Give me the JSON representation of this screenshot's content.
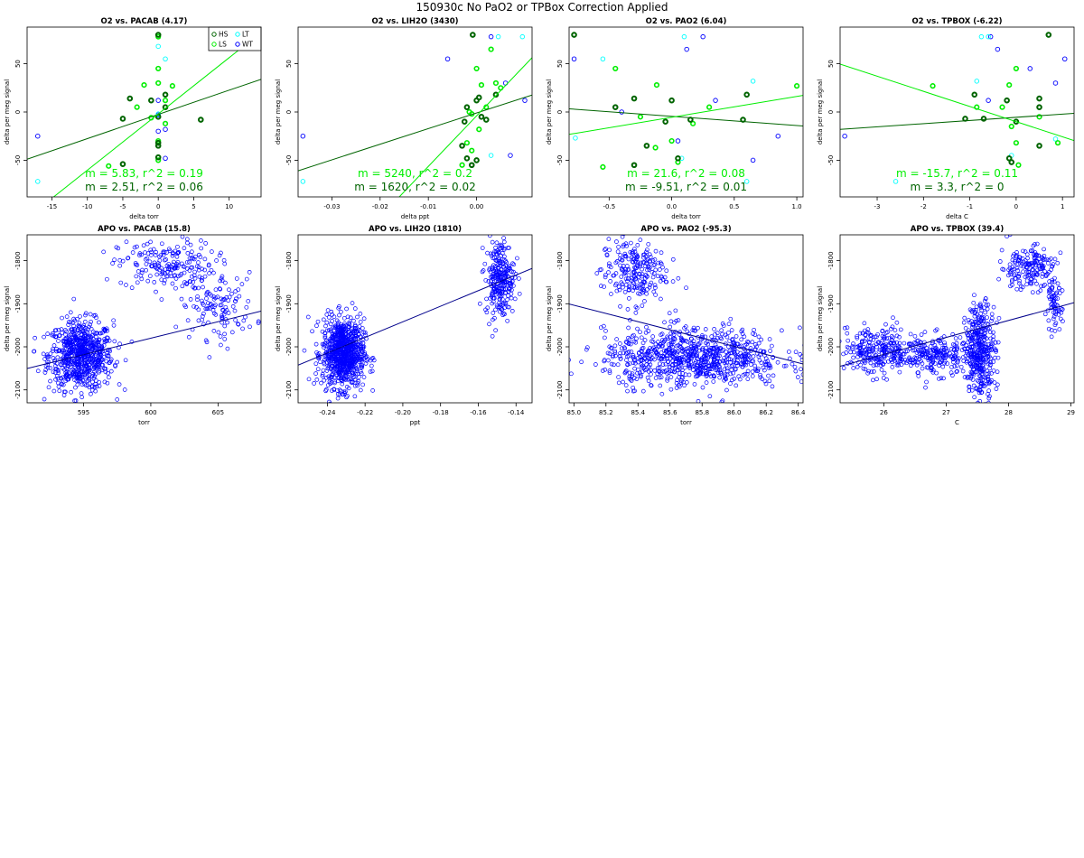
{
  "page_title": "150930c   No PaO2 or TPBox Correction Applied",
  "colors": {
    "HS": "#006400",
    "LS": "#00ee00",
    "LT": "#00ffff",
    "WT": "#0000ff",
    "fit_dark": "#006400",
    "fit_light": "#00ee00",
    "fit_apo": "#00008b"
  },
  "chart_data": [
    {
      "type": "scatter",
      "title": "O2 vs. PACAB (4.17)",
      "xlabel": "delta torr",
      "ylabel": "delta per meg signal",
      "xlim": [
        -18.5,
        14.5
      ],
      "ylim": [
        -88,
        88
      ],
      "xticks": [
        -15,
        -10,
        -5,
        0,
        5,
        10
      ],
      "yticks": [
        -50,
        0,
        50
      ],
      "legend": {
        "position": "top-right",
        "entries": [
          "HS",
          "LS",
          "LT",
          "WT"
        ]
      },
      "fit_dark": {
        "slope": 2.51,
        "intercept": -2.5,
        "label": "m = 2.51, r^2 = 0.06"
      },
      "fit_light": {
        "slope": 5.83,
        "intercept": -2,
        "label": "m = 5.83, r^2 = 0.19"
      },
      "series": [
        {
          "name": "HS",
          "points": [
            [
              0,
              80
            ],
            [
              0,
              -5
            ],
            [
              0,
              -35
            ],
            [
              0,
              -47
            ],
            [
              -1,
              12
            ],
            [
              1,
              5
            ],
            [
              -4,
              14
            ],
            [
              1,
              18
            ],
            [
              -5,
              -7
            ],
            [
              6,
              -8
            ],
            [
              -5,
              -54
            ],
            [
              0,
              -32
            ]
          ]
        },
        {
          "name": "LS",
          "points": [
            [
              0,
              78
            ],
            [
              0,
              45
            ],
            [
              0,
              30
            ],
            [
              1,
              12
            ],
            [
              -2,
              28
            ],
            [
              -3,
              5
            ],
            [
              2,
              27
            ],
            [
              1,
              -12
            ],
            [
              0,
              -30
            ],
            [
              -7,
              -56
            ],
            [
              0,
              -50
            ],
            [
              -1,
              -6
            ]
          ]
        },
        {
          "name": "LT",
          "points": [
            [
              1,
              55
            ],
            [
              0,
              68
            ],
            [
              0,
              -2
            ],
            [
              -17,
              -72
            ]
          ]
        },
        {
          "name": "WT",
          "points": [
            [
              0,
              12
            ],
            [
              0,
              -3
            ],
            [
              1,
              -48
            ],
            [
              1,
              -18
            ],
            [
              -17,
              -25
            ],
            [
              0,
              -20
            ]
          ]
        }
      ]
    },
    {
      "type": "scatter",
      "title": "O2 vs. LIH2O (3430)",
      "xlabel": "delta ppt",
      "ylabel": "delta per meg signal",
      "xlim": [
        -0.037,
        0.0115
      ],
      "ylim": [
        -88,
        88
      ],
      "xticks": [
        -0.03,
        -0.02,
        -0.01,
        0.0
      ],
      "xtick_labels": [
        "-0.03",
        "-0.02",
        "-0.01",
        "0.00"
      ],
      "yticks": [
        -50,
        0,
        50
      ],
      "fit_dark": {
        "slope": 1620,
        "intercept": -1,
        "label": "m = 1620, r^2 = 0.02"
      },
      "fit_light": {
        "slope": 5240,
        "intercept": -4,
        "label": "m = 5240, r^2 = 0.2"
      },
      "series": [
        {
          "name": "HS",
          "points": [
            [
              -0.0008,
              80
            ],
            [
              0.0,
              12
            ],
            [
              0.0005,
              15
            ],
            [
              0.001,
              -5
            ],
            [
              0.004,
              18
            ],
            [
              -0.002,
              5
            ],
            [
              -0.003,
              -35
            ],
            [
              -0.002,
              -48
            ],
            [
              0.0,
              -50
            ],
            [
              0.002,
              -8
            ],
            [
              -0.001,
              -55
            ],
            [
              -0.0025,
              -10
            ]
          ]
        },
        {
          "name": "LS",
          "points": [
            [
              0.0,
              45
            ],
            [
              0.003,
              65
            ],
            [
              0.005,
              25
            ],
            [
              0.001,
              28
            ],
            [
              -0.0015,
              0
            ],
            [
              -0.002,
              -32
            ],
            [
              -0.001,
              -40
            ],
            [
              0.0005,
              -18
            ],
            [
              0.002,
              5
            ],
            [
              -0.003,
              -55
            ],
            [
              0.004,
              30
            ],
            [
              -0.001,
              -2
            ]
          ]
        },
        {
          "name": "LT",
          "points": [
            [
              0.0045,
              78
            ],
            [
              0.0095,
              78
            ],
            [
              0.003,
              -45
            ],
            [
              -0.036,
              -72
            ]
          ]
        },
        {
          "name": "WT",
          "points": [
            [
              0.003,
              78
            ],
            [
              0.007,
              -45
            ],
            [
              0.01,
              12
            ],
            [
              -0.036,
              -25
            ],
            [
              -0.006,
              55
            ],
            [
              0.006,
              30
            ]
          ]
        }
      ]
    },
    {
      "type": "scatter",
      "title": "O2 vs. PAO2 (6.04)",
      "xlabel": "delta torr",
      "ylabel": "delta per meg signal",
      "xlim": [
        -0.82,
        1.05
      ],
      "ylim": [
        -88,
        88
      ],
      "xticks": [
        -0.5,
        0,
        0.5,
        1
      ],
      "xtick_labels": [
        "-0.5",
        "0.0",
        "0.5",
        "1.0"
      ],
      "yticks": [
        -50,
        0,
        50
      ],
      "fit_dark": {
        "slope": -9.51,
        "intercept": -4.5,
        "label": "m = -9.51, r^2 = 0.01"
      },
      "fit_light": {
        "slope": 21.6,
        "intercept": -5.5,
        "label": "m = 21.6, r^2 = 0.08"
      },
      "series": [
        {
          "name": "HS",
          "points": [
            [
              -0.78,
              80
            ],
            [
              -0.3,
              14
            ],
            [
              -0.45,
              5
            ],
            [
              0.0,
              12
            ],
            [
              0.6,
              18
            ],
            [
              -0.2,
              -35
            ],
            [
              0.05,
              -48
            ],
            [
              -0.3,
              -55
            ],
            [
              0.15,
              -8
            ],
            [
              0.57,
              -8
            ],
            [
              -0.05,
              -10
            ]
          ]
        },
        {
          "name": "LS",
          "points": [
            [
              -0.45,
              45
            ],
            [
              -0.12,
              28
            ],
            [
              0.17,
              -12
            ],
            [
              -0.55,
              -57
            ],
            [
              -0.25,
              -5
            ],
            [
              0.0,
              -30
            ],
            [
              0.05,
              -52
            ],
            [
              1.0,
              27
            ],
            [
              0.3,
              5
            ],
            [
              -0.13,
              -37
            ]
          ]
        },
        {
          "name": "LT",
          "points": [
            [
              -0.55,
              55
            ],
            [
              0.1,
              78
            ],
            [
              0.65,
              32
            ],
            [
              -0.77,
              -27
            ],
            [
              0.6,
              -72
            ],
            [
              0.08,
              -48
            ]
          ]
        },
        {
          "name": "WT",
          "points": [
            [
              -0.78,
              55
            ],
            [
              0.25,
              78
            ],
            [
              0.12,
              65
            ],
            [
              0.35,
              12
            ],
            [
              0.85,
              -25
            ],
            [
              0.65,
              -50
            ],
            [
              0.05,
              -30
            ],
            [
              -0.4,
              0
            ]
          ]
        }
      ]
    },
    {
      "type": "scatter",
      "title": "O2 vs. TPBOX (-6.22)",
      "xlabel": "delta C",
      "ylabel": "delta per meg signal",
      "xlim": [
        -3.8,
        1.25
      ],
      "ylim": [
        -88,
        88
      ],
      "xticks": [
        -3,
        -2,
        -1,
        0,
        1
      ],
      "yticks": [
        -50,
        0,
        50
      ],
      "fit_dark": {
        "slope": 3.3,
        "intercept": -5.5,
        "label": "m = 3.3, r^2 = 0"
      },
      "fit_light": {
        "slope": -15.7,
        "intercept": -10,
        "label": "m = -15.7, r^2 = 0.11"
      },
      "series": [
        {
          "name": "HS",
          "points": [
            [
              0.7,
              80
            ],
            [
              -0.9,
              18
            ],
            [
              -1.1,
              -7
            ],
            [
              -0.2,
              12
            ],
            [
              0.5,
              14
            ],
            [
              0.5,
              -35
            ],
            [
              -0.1,
              -52
            ],
            [
              -0.7,
              -7
            ],
            [
              0.0,
              -10
            ],
            [
              0.5,
              5
            ],
            [
              -0.15,
              -48
            ]
          ]
        },
        {
          "name": "LS",
          "points": [
            [
              0.0,
              45
            ],
            [
              -0.15,
              28
            ],
            [
              -1.8,
              27
            ],
            [
              -0.85,
              5
            ],
            [
              0.5,
              -5
            ],
            [
              0.0,
              -32
            ],
            [
              0.05,
              -55
            ],
            [
              0.9,
              -32
            ],
            [
              -0.1,
              -15
            ],
            [
              -0.3,
              5
            ]
          ]
        },
        {
          "name": "LT",
          "points": [
            [
              -0.6,
              78
            ],
            [
              -0.75,
              78
            ],
            [
              -0.85,
              32
            ],
            [
              -2.6,
              -72
            ],
            [
              0.85,
              -28
            ],
            [
              -0.1,
              -45
            ]
          ]
        },
        {
          "name": "WT",
          "points": [
            [
              -0.4,
              65
            ],
            [
              -0.55,
              78
            ],
            [
              1.05,
              55
            ],
            [
              -3.7,
              -25
            ],
            [
              -0.6,
              12
            ],
            [
              0.85,
              30
            ],
            [
              0.3,
              45
            ]
          ]
        }
      ]
    },
    {
      "type": "scatter",
      "title": "APO vs. PACAB (15.8)",
      "xlabel": "torr",
      "ylabel": "delta per meg signal",
      "xlim": [
        590.8,
        608.2
      ],
      "ylim": [
        -2130,
        -1740
      ],
      "xticks": [
        595,
        600,
        605
      ],
      "yticks": [
        -2100,
        -2000,
        -1900,
        -1800
      ],
      "fit": {
        "slope": 7.65,
        "intercept": -6570
      },
      "clusters": [
        {
          "cx": 594.8,
          "cy": -2020,
          "sx": 1.2,
          "sy": 40,
          "n": 700
        },
        {
          "cx": 601.2,
          "cy": -1810,
          "sx": 1.8,
          "sy": 28,
          "n": 190
        },
        {
          "cx": 605.0,
          "cy": -1905,
          "sx": 1.4,
          "sy": 38,
          "n": 120
        }
      ]
    },
    {
      "type": "scatter",
      "title": "APO vs. LIH2O (1810)",
      "xlabel": "ppt",
      "ylabel": "delta per meg signal",
      "xlim": [
        -0.2555,
        -0.1315
      ],
      "ylim": [
        -2130,
        -1740
      ],
      "xticks": [
        -0.24,
        -0.22,
        -0.2,
        -0.18,
        -0.16,
        -0.14
      ],
      "xtick_labels": [
        "-0.24",
        "-0.22",
        "-0.20",
        "-0.18",
        "-0.16",
        "-0.14"
      ],
      "yticks": [
        -2100,
        -2000,
        -1900,
        -1800
      ],
      "fit": {
        "slope": 1810,
        "intercept": -1580
      },
      "clusters": [
        {
          "cx": -0.2315,
          "cy": -2015,
          "sx": 0.0055,
          "sy": 40,
          "n": 800
        },
        {
          "cx": -0.1485,
          "cy": -1840,
          "sx": 0.0038,
          "sy": 45,
          "n": 260
        }
      ]
    },
    {
      "type": "scatter",
      "title": "APO vs. PAO2 (-95.3)",
      "xlabel": "torr",
      "ylabel": "delta per meg signal",
      "xlim": [
        84.97,
        86.43
      ],
      "ylim": [
        -2130,
        -1740
      ],
      "xticks": [
        85.0,
        85.2,
        85.4,
        85.6,
        85.8,
        86.0,
        86.2,
        86.4
      ],
      "xtick_labels": [
        "85.0",
        "85.2",
        "85.4",
        "85.6",
        "85.8",
        "86.0",
        "86.2",
        "86.4"
      ],
      "yticks": [
        -2100,
        -2000,
        -1900,
        -1800
      ],
      "fit": {
        "slope": -95.3,
        "intercept": 6197
      },
      "clusters": [
        {
          "cx": 85.37,
          "cy": -1825,
          "sx": 0.1,
          "sy": 38,
          "n": 220
        },
        {
          "cx": 85.75,
          "cy": -2025,
          "sx": 0.28,
          "sy": 33,
          "n": 800
        }
      ]
    },
    {
      "type": "scatter",
      "title": "APO vs. TPBOX (39.4)",
      "xlabel": "C",
      "ylabel": "delta per meg signal",
      "xlim": [
        25.3,
        29.05
      ],
      "ylim": [
        -2130,
        -1740
      ],
      "xticks": [
        26,
        27,
        28,
        29
      ],
      "yticks": [
        -2100,
        -2000,
        -1900,
        -1800
      ],
      "fit": {
        "slope": 39.4,
        "intercept": -3042
      },
      "clusters": [
        {
          "cx": 25.9,
          "cy": -2010,
          "sx": 0.3,
          "sy": 28,
          "n": 260
        },
        {
          "cx": 26.8,
          "cy": -2020,
          "sx": 0.28,
          "sy": 22,
          "n": 220
        },
        {
          "cx": 27.55,
          "cy": -2010,
          "sx": 0.12,
          "sy": 55,
          "n": 380
        },
        {
          "cx": 28.3,
          "cy": -1815,
          "sx": 0.22,
          "sy": 25,
          "n": 170
        },
        {
          "cx": 28.72,
          "cy": -1905,
          "sx": 0.07,
          "sy": 30,
          "n": 70
        }
      ]
    }
  ]
}
